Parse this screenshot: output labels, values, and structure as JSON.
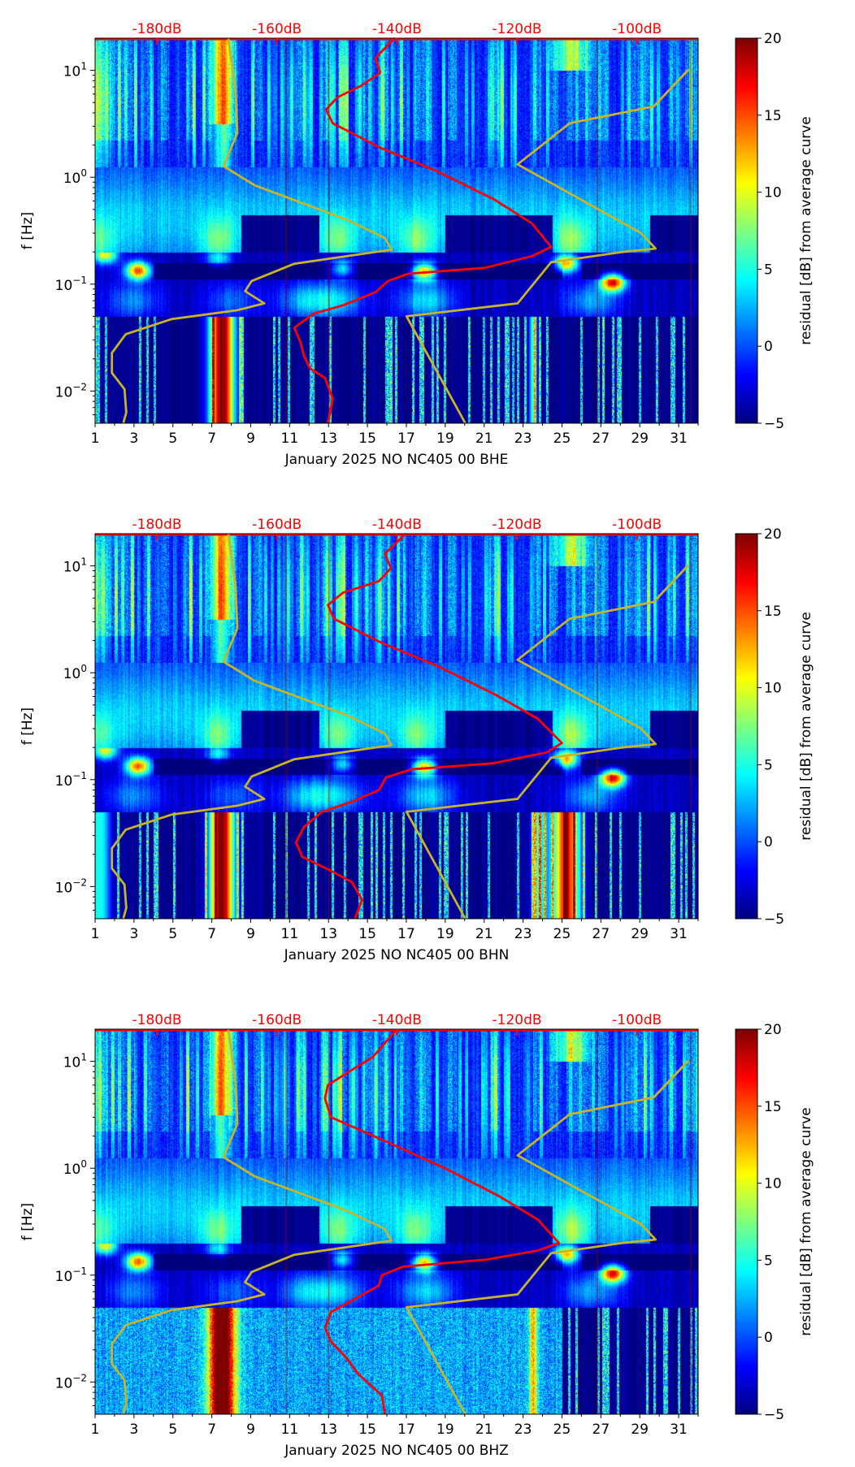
{
  "chart_data": [
    {
      "type": "heatmap",
      "xlabel": "January 2025 NO NC405 00 BHE",
      "ylabel": "f [Hz]",
      "xlim": [
        1,
        32
      ],
      "ylim": [
        0.005,
        20
      ],
      "yscale": "log",
      "xticks": [
        "1",
        "3",
        "5",
        "7",
        "9",
        "11",
        "13",
        "15",
        "17",
        "19",
        "21",
        "23",
        "25",
        "27",
        "29",
        "31"
      ],
      "yticks": [
        {
          "value": 0.01,
          "base": "10",
          "exp": "−2"
        },
        {
          "value": 0.1,
          "base": "10",
          "exp": "−1"
        },
        {
          "value": 1,
          "base": "10",
          "exp": "0"
        },
        {
          "value": 10,
          "base": "10",
          "exp": "1"
        }
      ],
      "top_axis": {
        "range_db": [
          -190.3,
          -89.8
        ],
        "ticks": [
          {
            "db": -180,
            "label": "-180dB"
          },
          {
            "db": -160,
            "label": "-160dB"
          },
          {
            "db": -140,
            "label": "-140dB"
          },
          {
            "db": -120,
            "label": "-120dB"
          },
          {
            "db": -100,
            "label": "-100dB"
          }
        ],
        "color": "#ff0000"
      },
      "colorbar": {
        "label": "residual [dB] from average curve",
        "range": [
          -5,
          20
        ],
        "ticks": [
          "20",
          "15",
          "10",
          "5",
          "0",
          "−5"
        ]
      },
      "curves": {
        "psd_red": [
          [
            -151.5,
            0.005
          ],
          [
            -150.7,
            0.0085
          ],
          [
            -152,
            0.0133
          ],
          [
            -154.5,
            0.0163
          ],
          [
            -155.5,
            0.0214
          ],
          [
            -156.1,
            0.029
          ],
          [
            -157.1,
            0.039
          ],
          [
            -153.9,
            0.053
          ],
          [
            -149.1,
            0.063
          ],
          [
            -143.6,
            0.084
          ],
          [
            -141.5,
            0.107
          ],
          [
            -138.1,
            0.125
          ],
          [
            -125.4,
            0.142
          ],
          [
            -117.5,
            0.183
          ],
          [
            -114.3,
            0.223
          ],
          [
            -117.5,
            0.37
          ],
          [
            -123.8,
            0.62
          ],
          [
            -133.3,
            1.14
          ],
          [
            -142.8,
            1.89
          ],
          [
            -150.7,
            3.2
          ],
          [
            -151.8,
            4.3
          ],
          [
            -149.9,
            5.6
          ],
          [
            -145.9,
            7.2
          ],
          [
            -142.8,
            9.5
          ],
          [
            -143.6,
            13
          ],
          [
            -140.4,
            20
          ]
        ],
        "nlnm_yellow": [
          [
            -185.6,
            0.005
          ],
          [
            -185.1,
            0.0063
          ],
          [
            -185.4,
            0.0104
          ],
          [
            -187.5,
            0.0148
          ],
          [
            -187.5,
            0.0227
          ],
          [
            -185.2,
            0.034
          ],
          [
            -177.6,
            0.047
          ],
          [
            -166.6,
            0.057
          ],
          [
            -162.1,
            0.066
          ],
          [
            -165.3,
            0.086
          ],
          [
            -164.2,
            0.107
          ],
          [
            -157.1,
            0.155
          ],
          [
            -140.9,
            0.21
          ],
          [
            -142.0,
            0.27
          ],
          [
            -148.3,
            0.4
          ],
          [
            -163.7,
            0.84
          ],
          [
            -168.9,
            1.27
          ],
          [
            -166.6,
            2.6
          ],
          [
            -166.9,
            6.5
          ],
          [
            -168.1,
            20
          ]
        ],
        "nhnm_yellow": [
          [
            -128.6,
            0.005
          ],
          [
            -138.4,
            0.05
          ],
          [
            -119.9,
            0.066
          ],
          [
            -114.3,
            0.16
          ],
          [
            -102.4,
            0.2
          ],
          [
            -96.9,
            0.215
          ],
          [
            -99.3,
            0.3
          ],
          [
            -119.9,
            1.32
          ],
          [
            -111.2,
            3.2
          ],
          [
            -97.2,
            4.6
          ],
          [
            -91.4,
            10.2
          ]
        ]
      }
    },
    {
      "type": "heatmap",
      "xlabel": "January 2025 NO NC405 00 BHN",
      "ylabel": "f [Hz]",
      "xlim": [
        1,
        32
      ],
      "ylim": [
        0.005,
        20
      ],
      "yscale": "log",
      "xticks": [
        "1",
        "3",
        "5",
        "7",
        "9",
        "11",
        "13",
        "15",
        "17",
        "19",
        "21",
        "23",
        "25",
        "27",
        "29",
        "31"
      ],
      "yticks": [
        {
          "value": 0.01,
          "base": "10",
          "exp": "−2"
        },
        {
          "value": 0.1,
          "base": "10",
          "exp": "−1"
        },
        {
          "value": 1,
          "base": "10",
          "exp": "0"
        },
        {
          "value": 10,
          "base": "10",
          "exp": "1"
        }
      ],
      "top_axis": {
        "range_db": [
          -190.3,
          -89.8
        ],
        "ticks": [
          {
            "db": -180,
            "label": "-180dB"
          },
          {
            "db": -160,
            "label": "-160dB"
          },
          {
            "db": -140,
            "label": "-140dB"
          },
          {
            "db": -120,
            "label": "-120dB"
          },
          {
            "db": -100,
            "label": "-100dB"
          }
        ],
        "color": "#ff0000"
      },
      "colorbar": {
        "label": "residual [dB] from average curve",
        "range": [
          -5,
          20
        ],
        "ticks": [
          "20",
          "15",
          "10",
          "5",
          "0",
          "−5"
        ]
      },
      "curves": {
        "psd_red": [
          [
            -147.0,
            0.005
          ],
          [
            -145.8,
            0.0075
          ],
          [
            -147.5,
            0.011
          ],
          [
            -151.5,
            0.0145
          ],
          [
            -155.8,
            0.019
          ],
          [
            -156.8,
            0.026
          ],
          [
            -155.5,
            0.036
          ],
          [
            -152.5,
            0.05
          ],
          [
            -147.5,
            0.062
          ],
          [
            -143.0,
            0.08
          ],
          [
            -141.8,
            0.105
          ],
          [
            -137.5,
            0.125
          ],
          [
            -124.0,
            0.142
          ],
          [
            -115.0,
            0.18
          ],
          [
            -112.5,
            0.22
          ],
          [
            -116.5,
            0.37
          ],
          [
            -123.5,
            0.62
          ],
          [
            -133.0,
            1.14
          ],
          [
            -142.5,
            1.9
          ],
          [
            -150.5,
            3.2
          ],
          [
            -151.5,
            4.3
          ],
          [
            -149.0,
            5.6
          ],
          [
            -143.0,
            7.2
          ],
          [
            -141.0,
            9.5
          ],
          [
            -142.0,
            13
          ],
          [
            -138.5,
            20
          ]
        ],
        "nlnm_yellow": [
          [
            -185.6,
            0.005
          ],
          [
            -185.1,
            0.0063
          ],
          [
            -185.4,
            0.0104
          ],
          [
            -187.5,
            0.0148
          ],
          [
            -187.5,
            0.0227
          ],
          [
            -185.2,
            0.034
          ],
          [
            -177.6,
            0.047
          ],
          [
            -166.6,
            0.057
          ],
          [
            -162.1,
            0.066
          ],
          [
            -165.3,
            0.086
          ],
          [
            -164.2,
            0.107
          ],
          [
            -157.1,
            0.155
          ],
          [
            -140.9,
            0.21
          ],
          [
            -142.0,
            0.27
          ],
          [
            -148.3,
            0.4
          ],
          [
            -163.7,
            0.84
          ],
          [
            -168.9,
            1.27
          ],
          [
            -166.6,
            2.6
          ],
          [
            -166.9,
            6.5
          ],
          [
            -168.1,
            20
          ]
        ],
        "nhnm_yellow": [
          [
            -128.6,
            0.005
          ],
          [
            -138.4,
            0.05
          ],
          [
            -119.9,
            0.066
          ],
          [
            -114.3,
            0.16
          ],
          [
            -102.4,
            0.2
          ],
          [
            -96.9,
            0.215
          ],
          [
            -99.3,
            0.3
          ],
          [
            -119.9,
            1.32
          ],
          [
            -111.2,
            3.2
          ],
          [
            -97.2,
            4.6
          ],
          [
            -91.4,
            10.2
          ]
        ]
      }
    },
    {
      "type": "heatmap",
      "xlabel": "January 2025 NO NC405 00 BHZ",
      "ylabel": "f [Hz]",
      "xlim": [
        1,
        32
      ],
      "ylim": [
        0.005,
        20
      ],
      "yscale": "log",
      "xticks": [
        "1",
        "3",
        "5",
        "7",
        "9",
        "11",
        "13",
        "15",
        "17",
        "19",
        "21",
        "23",
        "25",
        "27",
        "29",
        "31"
      ],
      "yticks": [
        {
          "value": 0.01,
          "base": "10",
          "exp": "−2"
        },
        {
          "value": 0.1,
          "base": "10",
          "exp": "−1"
        },
        {
          "value": 1,
          "base": "10",
          "exp": "0"
        },
        {
          "value": 10,
          "base": "10",
          "exp": "1"
        }
      ],
      "top_axis": {
        "range_db": [
          -190.3,
          -89.8
        ],
        "ticks": [
          {
            "db": -180,
            "label": "-180dB"
          },
          {
            "db": -160,
            "label": "-160dB"
          },
          {
            "db": -140,
            "label": "-140dB"
          },
          {
            "db": -120,
            "label": "-120dB"
          },
          {
            "db": -100,
            "label": "-100dB"
          }
        ],
        "color": "#ff0000"
      },
      "colorbar": {
        "label": "residual [dB] from average curve",
        "range": [
          -5,
          20
        ],
        "ticks": [
          "20",
          "15",
          "10",
          "5",
          "0",
          "−5"
        ]
      },
      "curves": {
        "psd_red": [
          [
            -142.0,
            0.005
          ],
          [
            -142.5,
            0.0075
          ],
          [
            -145.0,
            0.01
          ],
          [
            -146.5,
            0.012
          ],
          [
            -148.5,
            0.017
          ],
          [
            -151.0,
            0.024
          ],
          [
            -152.0,
            0.032
          ],
          [
            -151.0,
            0.045
          ],
          [
            -147.0,
            0.06
          ],
          [
            -143.0,
            0.08
          ],
          [
            -142.5,
            0.1
          ],
          [
            -139.0,
            0.12
          ],
          [
            -125.0,
            0.14
          ],
          [
            -116.5,
            0.17
          ],
          [
            -113.0,
            0.2
          ],
          [
            -116.5,
            0.33
          ],
          [
            -123.0,
            0.55
          ],
          [
            -132.0,
            1.0
          ],
          [
            -142.0,
            1.8
          ],
          [
            -151.0,
            3.0
          ],
          [
            -152.0,
            4.5
          ],
          [
            -151.5,
            6.0
          ],
          [
            -148.0,
            8.0
          ],
          [
            -144.0,
            11
          ],
          [
            -140.0,
            20
          ]
        ],
        "nlnm_yellow": [
          [
            -185.6,
            0.005
          ],
          [
            -185.1,
            0.0063
          ],
          [
            -185.4,
            0.0104
          ],
          [
            -187.5,
            0.0148
          ],
          [
            -187.5,
            0.0227
          ],
          [
            -185.2,
            0.034
          ],
          [
            -177.6,
            0.047
          ],
          [
            -166.6,
            0.057
          ],
          [
            -162.1,
            0.066
          ],
          [
            -165.3,
            0.086
          ],
          [
            -164.2,
            0.107
          ],
          [
            -157.1,
            0.155
          ],
          [
            -140.9,
            0.21
          ],
          [
            -142.0,
            0.27
          ],
          [
            -148.3,
            0.4
          ],
          [
            -163.7,
            0.84
          ],
          [
            -168.9,
            1.27
          ],
          [
            -166.6,
            2.6
          ],
          [
            -166.9,
            6.5
          ],
          [
            -168.1,
            20
          ]
        ],
        "nhnm_yellow": [
          [
            -128.6,
            0.005
          ],
          [
            -138.4,
            0.05
          ],
          [
            -119.9,
            0.066
          ],
          [
            -114.3,
            0.16
          ],
          [
            -102.4,
            0.2
          ],
          [
            -96.9,
            0.215
          ],
          [
            -99.3,
            0.3
          ],
          [
            -119.9,
            1.32
          ],
          [
            -111.2,
            3.2
          ],
          [
            -97.2,
            4.6
          ],
          [
            -91.4,
            10.2
          ]
        ]
      }
    }
  ],
  "colors": {
    "psd": "#ff0000",
    "noise_model": "#c8b428",
    "top_axis": "#ff0000"
  }
}
